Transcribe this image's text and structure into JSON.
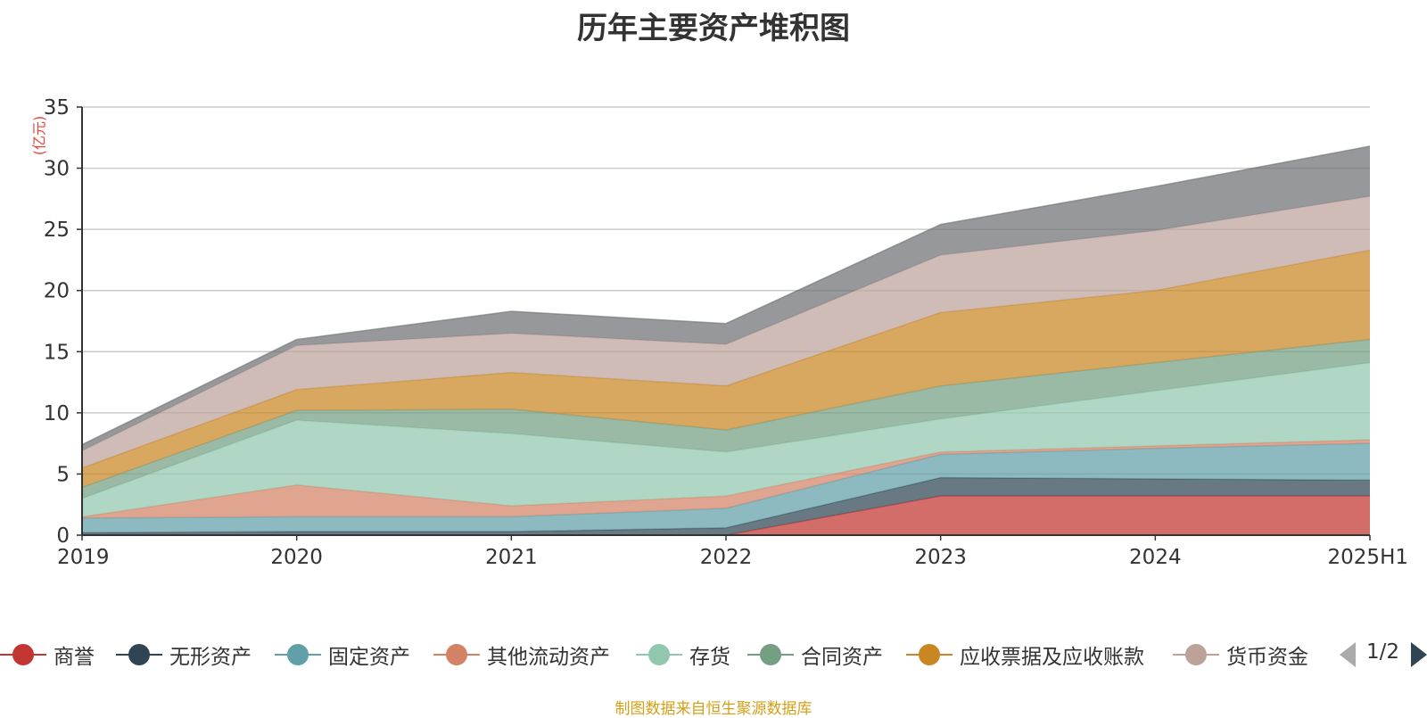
{
  "chart_data": {
    "type": "area",
    "stacked": true,
    "title": "历年主要资产堆积图",
    "unit_label": "(亿元)",
    "categories": [
      "2019",
      "2020",
      "2021",
      "2022",
      "2023",
      "2024",
      "2025H1"
    ],
    "ylim": [
      0,
      35
    ],
    "yticks": [
      0,
      5,
      10,
      15,
      20,
      25,
      30,
      35
    ],
    "grid": true,
    "legend_position": "bottom",
    "series": [
      {
        "name": "商誉",
        "color": "#c23531",
        "values": [
          0.0,
          0.0,
          0.0,
          0.0,
          3.2,
          3.2,
          3.2
        ]
      },
      {
        "name": "无形资产",
        "color": "#2f4554",
        "values": [
          0.2,
          0.3,
          0.3,
          0.6,
          1.5,
          1.4,
          1.3
        ]
      },
      {
        "name": "固定资产",
        "color": "#61a0a8",
        "values": [
          1.2,
          1.2,
          1.2,
          1.6,
          1.9,
          2.5,
          3.0
        ]
      },
      {
        "name": "其他流动资产",
        "color": "#d48265",
        "values": [
          0.1,
          2.6,
          0.9,
          1.0,
          0.2,
          0.2,
          0.3
        ]
      },
      {
        "name": "存货",
        "color": "#91c7ae",
        "values": [
          1.5,
          5.3,
          5.9,
          3.6,
          2.7,
          4.5,
          6.3
        ]
      },
      {
        "name": "合同资产",
        "color": "#749f83",
        "values": [
          0.9,
          0.8,
          2.0,
          1.8,
          2.7,
          2.3,
          1.9
        ]
      },
      {
        "name": "应收票据及应收账款",
        "color": "#ca8622",
        "values": [
          1.6,
          1.7,
          3.0,
          3.6,
          6.0,
          5.9,
          7.3
        ]
      },
      {
        "name": "货币资金",
        "color": "#bda29a",
        "values": [
          1.4,
          3.6,
          3.2,
          3.4,
          4.7,
          4.9,
          4.4
        ]
      },
      {
        "color": "#6e7074",
        "values": [
          0.5,
          0.5,
          1.8,
          1.7,
          2.5,
          3.6,
          4.1
        ]
      }
    ]
  },
  "legend": {
    "items": [
      {
        "label": "商誉",
        "color": "#c23531"
      },
      {
        "label": "无形资产",
        "color": "#2f4554"
      },
      {
        "label": "固定资产",
        "color": "#61a0a8"
      },
      {
        "label": "其他流动资产",
        "color": "#d48265"
      },
      {
        "label": "存货",
        "color": "#91c7ae"
      },
      {
        "label": "合同资产",
        "color": "#749f83"
      },
      {
        "label": "应收票据及应收账款",
        "color": "#ca8622"
      },
      {
        "label": "货币资金",
        "color": "#bda29a"
      }
    ],
    "page_indicator": "1/2"
  },
  "source_note": "制图数据来自恒生聚源数据库"
}
